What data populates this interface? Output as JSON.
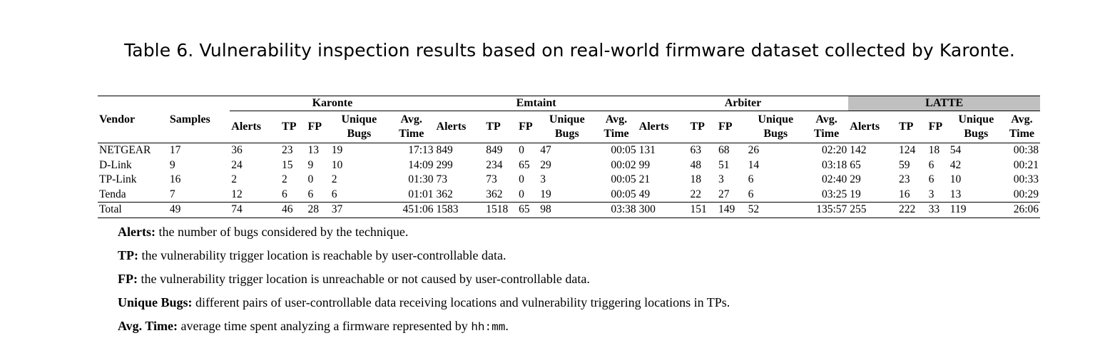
{
  "caption": "Table 6.  Vulnerability inspection results based on real-world firmware dataset collected by Karonte.",
  "table": {
    "vendor_header": "Vendor",
    "samples_header": "Samples",
    "groups": [
      "Karonte",
      "Emtaint",
      "Arbiter",
      "LATTE"
    ],
    "sub_headers": {
      "alerts": "Alerts",
      "tp": "TP",
      "fp": "FP",
      "unique_1": "Unique",
      "unique_2": "Bugs",
      "avg_1": "Avg.",
      "avg_2": "Time"
    },
    "rows": [
      {
        "vendor": "NETGEAR",
        "samples": "17",
        "karonte": [
          "36",
          "23",
          "13",
          "19",
          "17:13"
        ],
        "emtaint": [
          "849",
          "849",
          "0",
          "47",
          "00:05"
        ],
        "arbiter": [
          "131",
          "63",
          "68",
          "26",
          "02:20"
        ],
        "latte": [
          "142",
          "124",
          "18",
          "54",
          "00:38"
        ]
      },
      {
        "vendor": "D-Link",
        "samples": "9",
        "karonte": [
          "24",
          "15",
          "9",
          "10",
          "14:09"
        ],
        "emtaint": [
          "299",
          "234",
          "65",
          "29",
          "00:02"
        ],
        "arbiter": [
          "99",
          "48",
          "51",
          "14",
          "03:18"
        ],
        "latte": [
          "65",
          "59",
          "6",
          "42",
          "00:21"
        ]
      },
      {
        "vendor": "TP-Link",
        "samples": "16",
        "karonte": [
          "2",
          "2",
          "0",
          "2",
          "01:30"
        ],
        "emtaint": [
          "73",
          "73",
          "0",
          "3",
          "00:05"
        ],
        "arbiter": [
          "21",
          "18",
          "3",
          "6",
          "02:40"
        ],
        "latte": [
          "29",
          "23",
          "6",
          "10",
          "00:33"
        ]
      },
      {
        "vendor": "Tenda",
        "samples": "7",
        "karonte": [
          "12",
          "6",
          "6",
          "6",
          "01:01"
        ],
        "emtaint": [
          "362",
          "362",
          "0",
          "19",
          "00:05"
        ],
        "arbiter": [
          "49",
          "22",
          "27",
          "6",
          "03:25"
        ],
        "latte": [
          "19",
          "16",
          "3",
          "13",
          "00:29"
        ]
      }
    ],
    "total": {
      "vendor": "Total",
      "samples": "49",
      "karonte": [
        "74",
        "46",
        "28",
        "37",
        "451:06"
      ],
      "emtaint": [
        "1583",
        "1518",
        "65",
        "98",
        "03:38"
      ],
      "arbiter": [
        "300",
        "151",
        "149",
        "52",
        "135:57"
      ],
      "latte": [
        "255",
        "222",
        "33",
        "119",
        "26:06"
      ]
    }
  },
  "notes": [
    {
      "term": "Alerts:",
      "text": " the number of bugs considered by the technique."
    },
    {
      "term": "TP:",
      "text": " the vulnerability trigger location is reachable by user-controllable data."
    },
    {
      "term": "FP:",
      "text": " the vulnerability trigger location is unreachable or not caused by user-controllable data."
    },
    {
      "term": "Unique Bugs:",
      "text": " different pairs of user-controllable data receiving locations and vulnerability triggering locations in TPs."
    },
    {
      "term": "Avg. Time:",
      "text": " average time spent analyzing a firmware represented by ",
      "code": "hh:mm",
      "tail": "."
    }
  ]
}
